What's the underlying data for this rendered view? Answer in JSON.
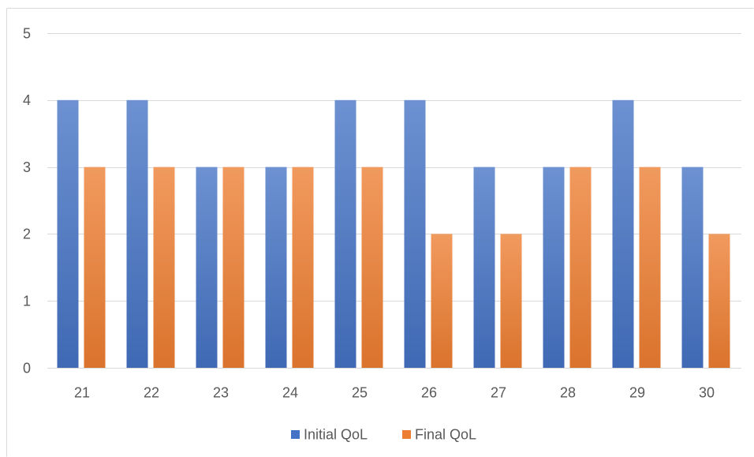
{
  "chart_data": {
    "type": "bar",
    "categories": [
      "21",
      "22",
      "23",
      "24",
      "25",
      "26",
      "27",
      "28",
      "29",
      "30"
    ],
    "series": [
      {
        "name": "Initial QoL",
        "color": "#4472c4",
        "values": [
          4,
          4,
          3,
          3,
          4,
          4,
          3,
          3,
          4,
          3
        ]
      },
      {
        "name": "Final QoL",
        "color": "#ed7d31",
        "values": [
          3,
          3,
          3,
          3,
          3,
          2,
          2,
          3,
          3,
          2
        ]
      }
    ],
    "ylim": [
      0,
      5
    ],
    "yticks": [
      0,
      1,
      2,
      3,
      4,
      5
    ],
    "grid": true,
    "legend_position": "bottom"
  },
  "colors": {
    "gridline": "#d9d9d9",
    "text": "#595959",
    "border": "#d9d9d9"
  }
}
